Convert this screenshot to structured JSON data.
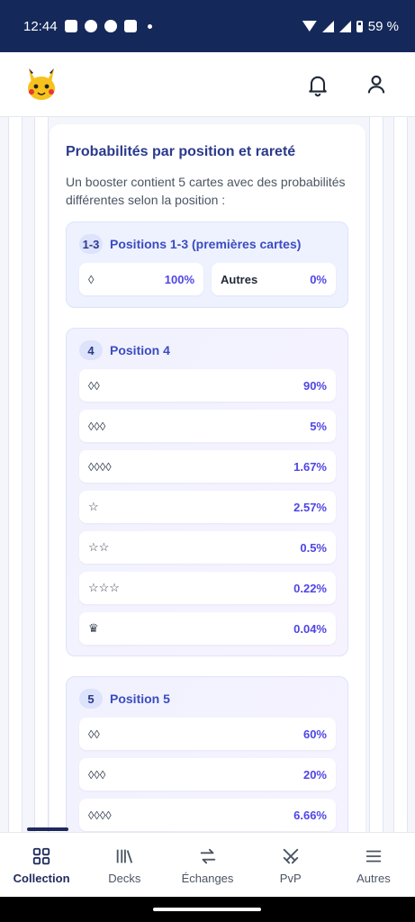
{
  "status_bar": {
    "time": "12:44",
    "battery": "59 %"
  },
  "header": {
    "logo_icon": "pikachu-logo-icon",
    "notification_icon": "bell-icon",
    "profile_icon": "user-icon"
  },
  "card": {
    "title": "Probabilités par position et rareté",
    "description": "Un booster contient 5 cartes avec des probabilités différentes selon la position :",
    "groups": [
      {
        "badge": "1-3",
        "title": "Positions 1-3 (premières cartes)",
        "items": [
          {
            "symbol": "◊",
            "value": "100%"
          },
          {
            "symbol": "Autres",
            "value": "0%"
          }
        ]
      },
      {
        "badge": "4",
        "title": "Position 4",
        "items": [
          {
            "symbol": "◊◊",
            "value": "90%"
          },
          {
            "symbol": "◊◊◊",
            "value": "5%"
          },
          {
            "symbol": "◊◊◊◊",
            "value": "1.67%"
          },
          {
            "symbol": "☆",
            "value": "2.57%"
          },
          {
            "symbol": "☆☆",
            "value": "0.5%"
          },
          {
            "symbol": "☆☆☆",
            "value": "0.22%"
          },
          {
            "symbol": "♛",
            "value": "0.04%"
          }
        ]
      },
      {
        "badge": "5",
        "title": "Position 5",
        "items": [
          {
            "symbol": "◊◊",
            "value": "60%"
          },
          {
            "symbol": "◊◊◊",
            "value": "20%"
          },
          {
            "symbol": "◊◊◊◊",
            "value": "6.66%"
          }
        ]
      }
    ]
  },
  "bottom_nav": {
    "items": [
      {
        "label": "Collection",
        "icon": "grid-icon",
        "active": true
      },
      {
        "label": "Decks",
        "icon": "library-icon"
      },
      {
        "label": "Échanges",
        "icon": "swap-icon"
      },
      {
        "label": "PvP",
        "icon": "swords-icon"
      },
      {
        "label": "Autres",
        "icon": "menu-icon"
      }
    ]
  }
}
